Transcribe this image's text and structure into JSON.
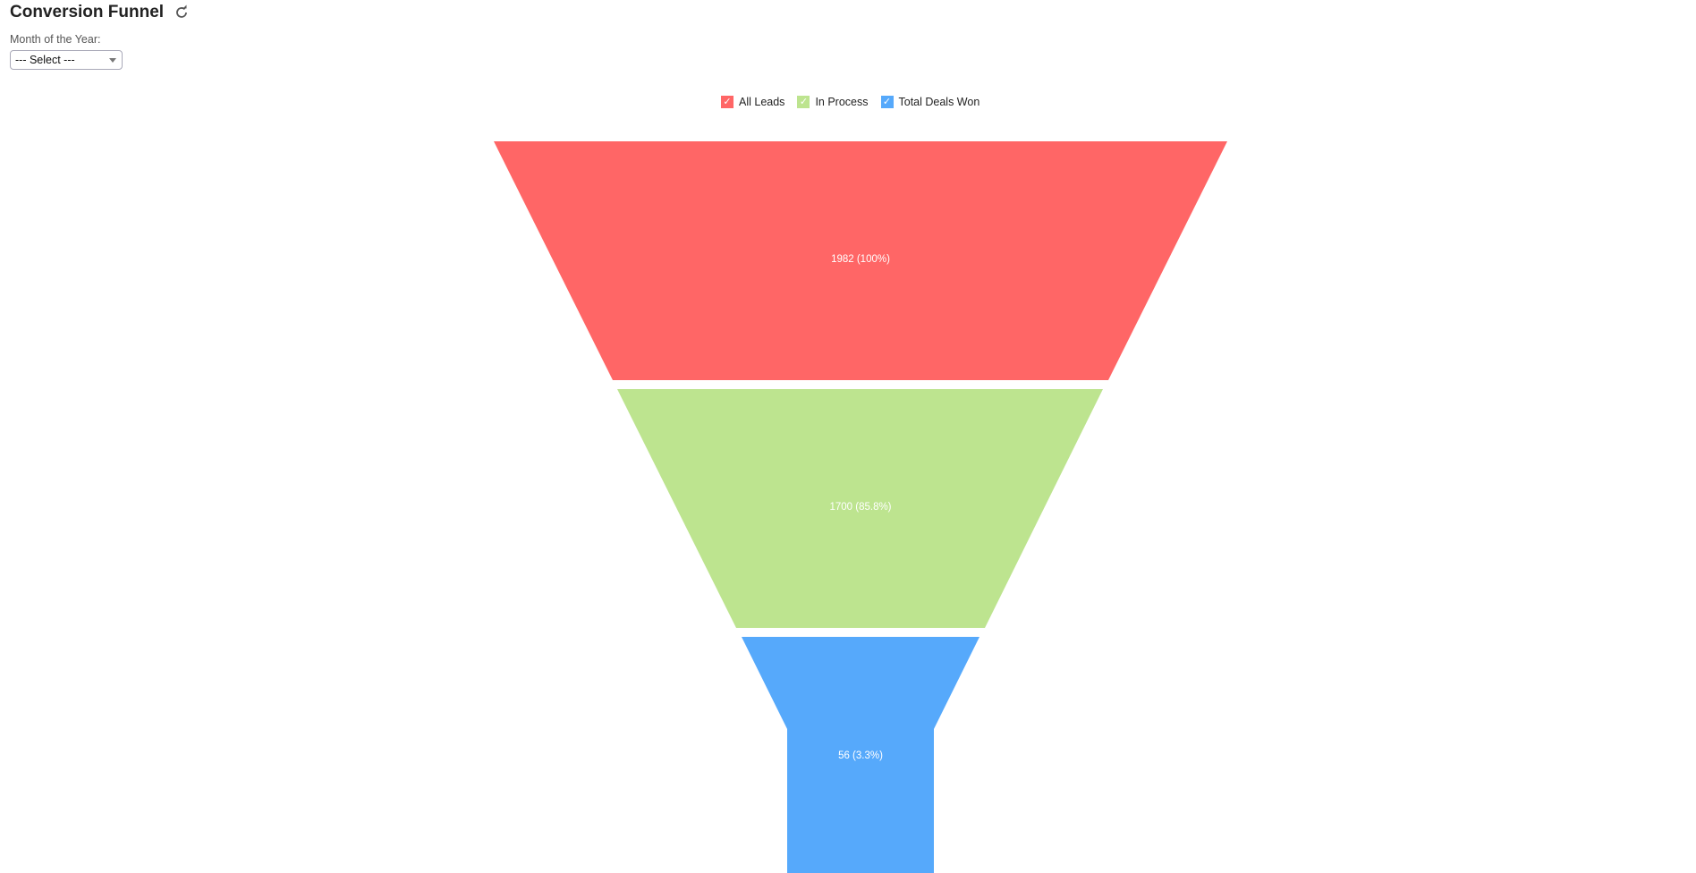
{
  "header": {
    "title": "Conversion Funnel",
    "refresh_icon": "refresh-icon"
  },
  "filter": {
    "label": "Month of the Year:",
    "selected": "--- Select ---"
  },
  "chart_data": {
    "type": "funnel",
    "categories": [
      "All Leads",
      "In Process",
      "Total Deals Won"
    ],
    "values": [
      1982,
      1700,
      56
    ],
    "percentages": [
      "100%",
      "85.8%",
      "3.3%"
    ],
    "data_labels": [
      "1982 (100%)",
      "1700 (85.8%)",
      "56 (3.3%)"
    ],
    "colors": [
      "#ff6666",
      "#bde48f",
      "#56a9fb"
    ],
    "legend": {
      "placement": "top-center",
      "items": [
        {
          "label": "All Leads",
          "checked": true,
          "color": "#ff6666"
        },
        {
          "label": "In Process",
          "checked": true,
          "color": "#bde48f"
        },
        {
          "label": "Total Deals Won",
          "checked": true,
          "color": "#56a9fb"
        }
      ]
    }
  }
}
